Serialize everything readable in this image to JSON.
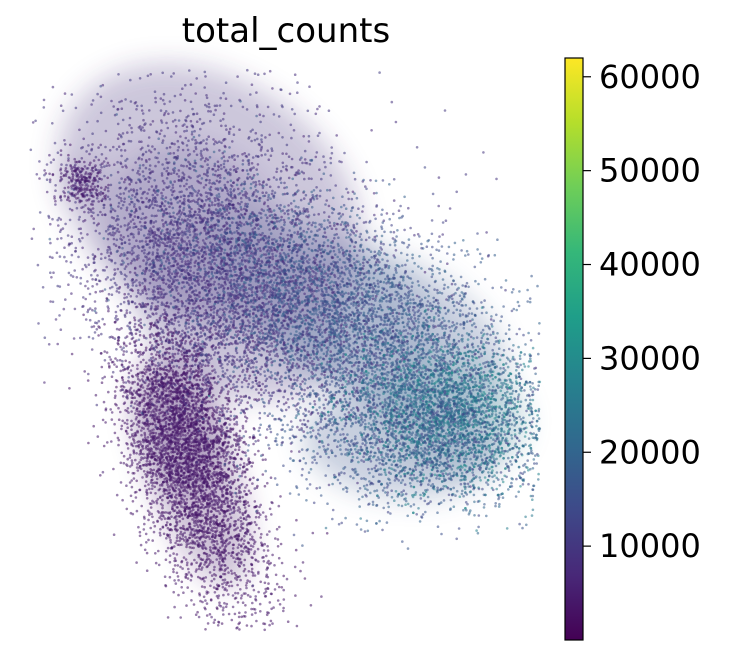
{
  "chart_data": {
    "type": "scatter",
    "title": "total_counts",
    "xlabel": "",
    "ylabel": "",
    "grid": false,
    "legend": "none",
    "colorbar": {
      "colormap": "viridis",
      "range": [
        0,
        62000
      ],
      "ticks": [
        10000,
        20000,
        30000,
        40000,
        50000,
        60000
      ],
      "tick_labels": [
        "10000",
        "20000",
        "30000",
        "40000",
        "50000",
        "60000"
      ],
      "colors": [
        "#440154",
        "#482878",
        "#3e4989",
        "#31688e",
        "#26828e",
        "#1f9e89",
        "#35b779",
        "#6ece58",
        "#b5de2b",
        "#fde725"
      ]
    },
    "point_groups": [
      {
        "name": "left-lower-lobe",
        "approx_value": 4000
      },
      {
        "name": "central-band",
        "approx_value": 9000
      },
      {
        "name": "right-arm",
        "approx_value": 16000
      },
      {
        "name": "right-cluster-core",
        "approx_value": 24000
      },
      {
        "name": "top-left-blob",
        "approx_value": 5000
      }
    ]
  }
}
